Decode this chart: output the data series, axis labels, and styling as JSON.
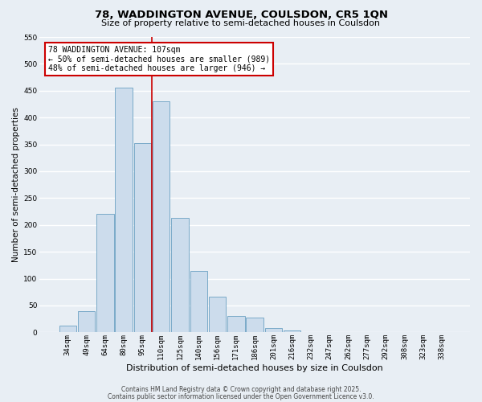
{
  "title_line1": "78, WADDINGTON AVENUE, COULSDON, CR5 1QN",
  "title_line2": "Size of property relative to semi-detached houses in Coulsdon",
  "bar_labels": [
    "34sqm",
    "49sqm",
    "64sqm",
    "80sqm",
    "95sqm",
    "110sqm",
    "125sqm",
    "140sqm",
    "156sqm",
    "171sqm",
    "186sqm",
    "201sqm",
    "216sqm",
    "232sqm",
    "247sqm",
    "262sqm",
    "277sqm",
    "292sqm",
    "308sqm",
    "323sqm",
    "338sqm"
  ],
  "bar_values": [
    12,
    40,
    220,
    455,
    352,
    430,
    213,
    115,
    67,
    30,
    28,
    8,
    3,
    1,
    0,
    0,
    0,
    0,
    0,
    0,
    0
  ],
  "bar_color": "#ccdcec",
  "bar_edgecolor": "#7aaac8",
  "vline_color": "#cc0000",
  "vline_x_index": 4.5,
  "ylabel": "Number of semi-detached properties",
  "xlabel": "Distribution of semi-detached houses by size in Coulsdon",
  "ylim": [
    0,
    550
  ],
  "yticks": [
    0,
    50,
    100,
    150,
    200,
    250,
    300,
    350,
    400,
    450,
    500,
    550
  ],
  "annotation_title": "78 WADDINGTON AVENUE: 107sqm",
  "annotation_line1": "← 50% of semi-detached houses are smaller (989)",
  "annotation_line2": "48% of semi-detached houses are larger (946) →",
  "annotation_box_facecolor": "#ffffff",
  "annotation_box_edgecolor": "#cc0000",
  "footer_line1": "Contains HM Land Registry data © Crown copyright and database right 2025.",
  "footer_line2": "Contains public sector information licensed under the Open Government Licence v3.0.",
  "background_color": "#e8eef4",
  "grid_color": "#ffffff",
  "title1_fontsize": 9.5,
  "title2_fontsize": 8,
  "ylabel_fontsize": 7.5,
  "xlabel_fontsize": 8,
  "tick_fontsize": 6.5,
  "ann_fontsize": 7,
  "footer_fontsize": 5.5
}
